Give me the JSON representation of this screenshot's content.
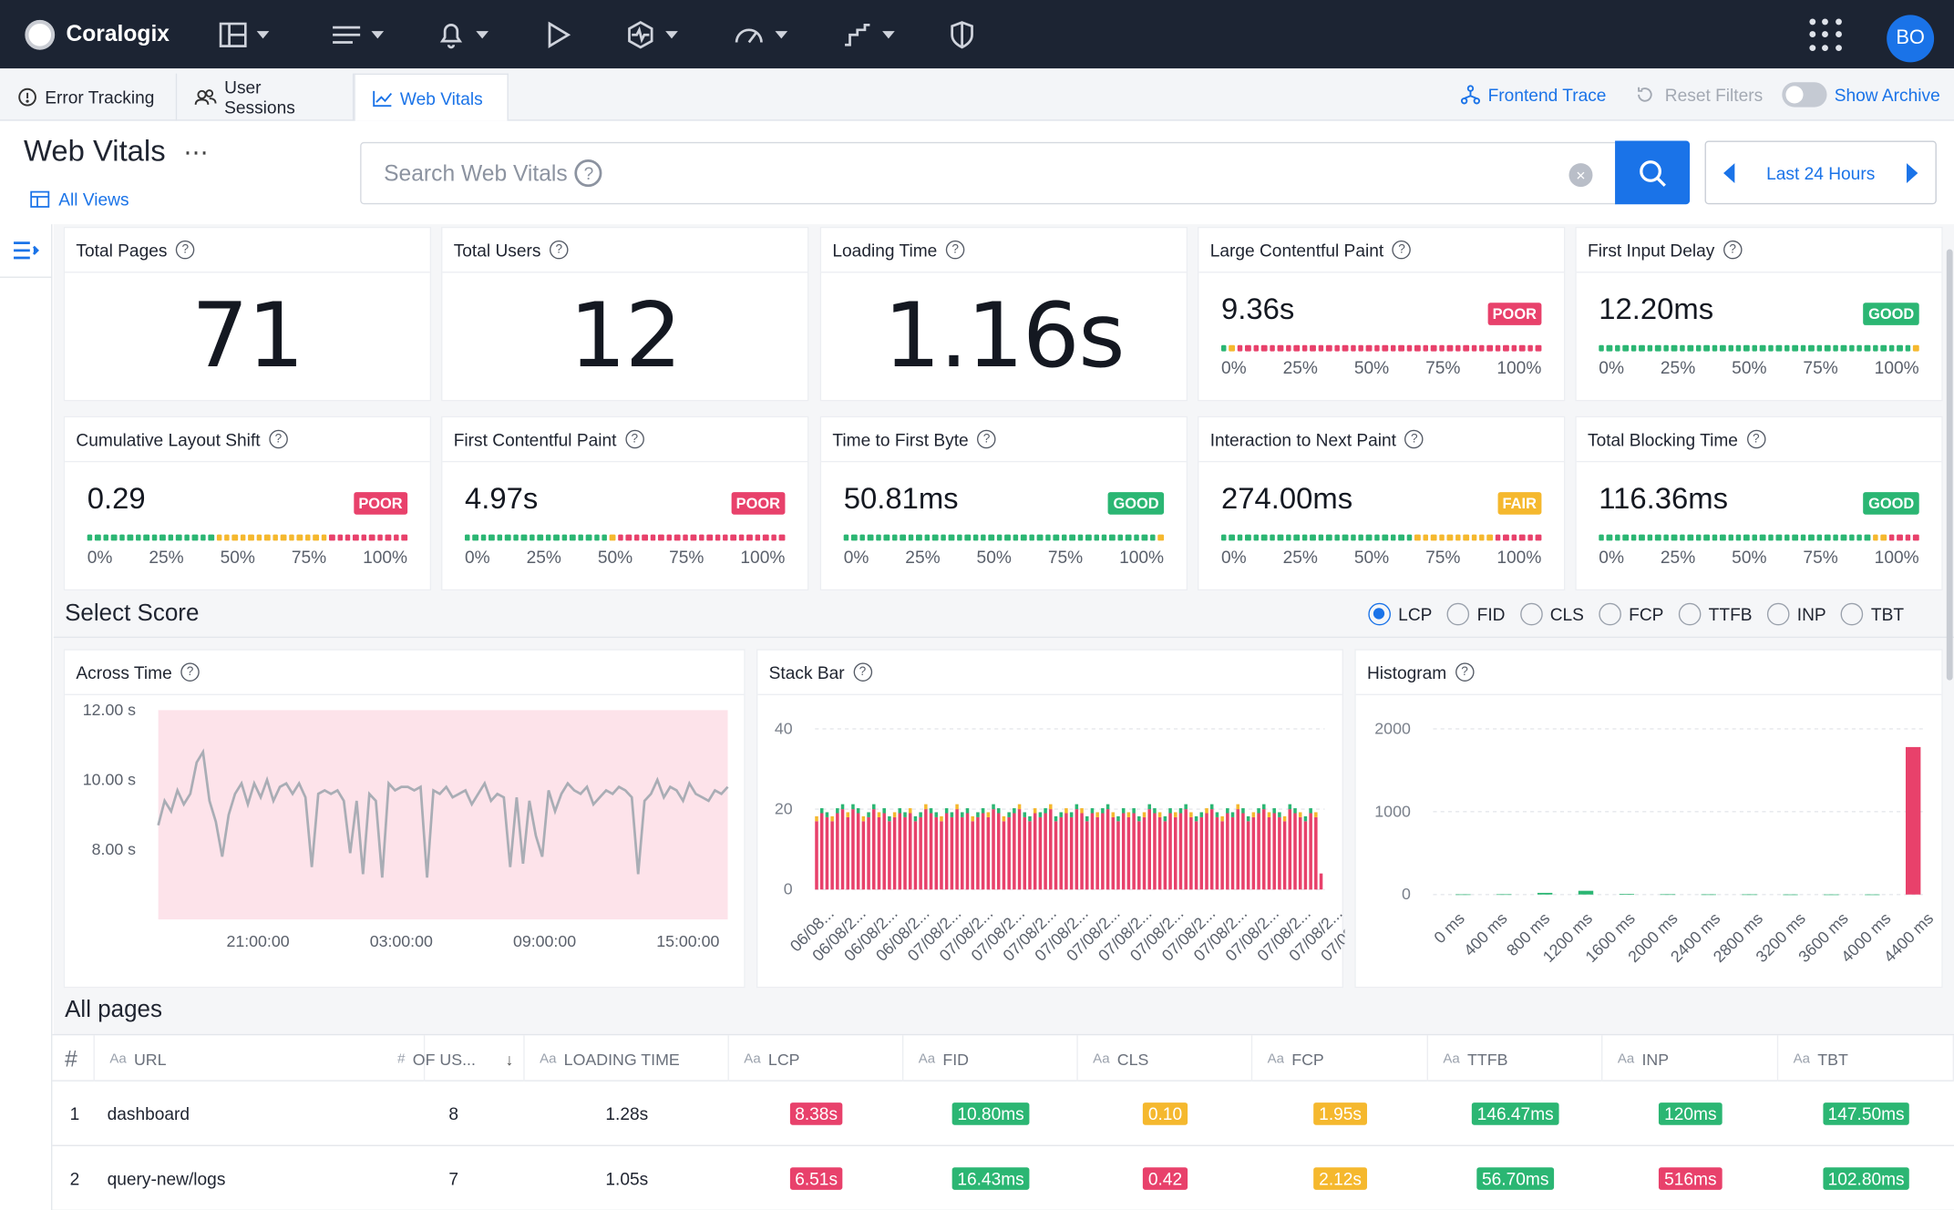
{
  "app": {
    "name": "Coralogix",
    "user_initials": "BO"
  },
  "topnav": [
    "dashboards-icon",
    "logs-icon",
    "alerts-icon",
    "play-icon",
    "integrations-icon",
    "speed-icon",
    "flow-icon",
    "shield-icon"
  ],
  "tabs": [
    {
      "label": "Error Tracking",
      "active": false
    },
    {
      "label": "User Sessions",
      "active": false
    },
    {
      "label": "Web Vitals",
      "active": true
    }
  ],
  "toolbar": {
    "frontend_trace": "Frontend Trace",
    "reset_filters": "Reset Filters",
    "show_archive": "Show Archive"
  },
  "page": {
    "title": "Web Vitals",
    "all_views": "All Views"
  },
  "search": {
    "placeholder": "Search Web Vitals",
    "qmark": "?"
  },
  "timerange": {
    "label": "Last 24 Hours"
  },
  "stats": [
    {
      "label": "Total Pages",
      "value": "71"
    },
    {
      "label": "Total Users",
      "value": "12"
    },
    {
      "label": "Loading Time",
      "value": "1.16s"
    }
  ],
  "metrics": [
    {
      "label": "Large Contentful Paint",
      "value": "9.36s",
      "status": "POOR",
      "color": "#e8416b",
      "bar": [
        "g",
        "y",
        "r",
        "r",
        "r",
        "r",
        "r",
        "r",
        "r",
        "r",
        "r",
        "r",
        "r",
        "r",
        "r",
        "r",
        "r",
        "r",
        "r",
        "r",
        "r",
        "r",
        "r",
        "r",
        "r",
        "r",
        "r",
        "r",
        "r",
        "r",
        "r",
        "r",
        "r",
        "r",
        "r",
        "r",
        "r",
        "r",
        "r",
        "r"
      ]
    },
    {
      "label": "First Input Delay",
      "value": "12.20ms",
      "status": "GOOD",
      "color": "#2bb673",
      "bar": [
        "g",
        "g",
        "g",
        "g",
        "g",
        "g",
        "g",
        "g",
        "g",
        "g",
        "g",
        "g",
        "g",
        "g",
        "g",
        "g",
        "g",
        "g",
        "g",
        "g",
        "g",
        "g",
        "g",
        "g",
        "g",
        "g",
        "g",
        "g",
        "g",
        "g",
        "g",
        "g",
        "g",
        "g",
        "g",
        "g",
        "g",
        "g",
        "g",
        "y"
      ]
    },
    {
      "label": "Cumulative Layout Shift",
      "value": "0.29",
      "status": "POOR",
      "color": "#e8416b",
      "bar": [
        "g",
        "g",
        "g",
        "g",
        "g",
        "g",
        "g",
        "g",
        "g",
        "g",
        "g",
        "g",
        "g",
        "g",
        "g",
        "g",
        "y",
        "y",
        "y",
        "y",
        "y",
        "y",
        "y",
        "y",
        "y",
        "y",
        "y",
        "y",
        "y",
        "y",
        "r",
        "r",
        "r",
        "r",
        "r",
        "r",
        "r",
        "r",
        "r",
        "r"
      ]
    },
    {
      "label": "First Contentful Paint",
      "value": "4.97s",
      "status": "POOR",
      "color": "#e8416b",
      "bar": [
        "g",
        "g",
        "g",
        "g",
        "g",
        "g",
        "g",
        "g",
        "g",
        "g",
        "g",
        "g",
        "g",
        "g",
        "g",
        "g",
        "g",
        "g",
        "y",
        "r",
        "r",
        "r",
        "r",
        "r",
        "r",
        "r",
        "r",
        "r",
        "r",
        "r",
        "r",
        "r",
        "r",
        "r",
        "r",
        "r",
        "r",
        "r",
        "r",
        "r"
      ]
    },
    {
      "label": "Time to First Byte",
      "value": "50.81ms",
      "status": "GOOD",
      "color": "#2bb673",
      "bar": [
        "g",
        "g",
        "g",
        "g",
        "g",
        "g",
        "g",
        "g",
        "g",
        "g",
        "g",
        "g",
        "g",
        "g",
        "g",
        "g",
        "g",
        "g",
        "g",
        "g",
        "g",
        "g",
        "g",
        "g",
        "g",
        "g",
        "g",
        "g",
        "g",
        "g",
        "g",
        "g",
        "g",
        "g",
        "g",
        "g",
        "g",
        "g",
        "g",
        "y"
      ]
    },
    {
      "label": "Interaction to Next Paint",
      "value": "274.00ms",
      "status": "FAIR",
      "color": "#f5b82e",
      "bar": [
        "g",
        "g",
        "g",
        "g",
        "g",
        "g",
        "g",
        "g",
        "g",
        "g",
        "g",
        "g",
        "g",
        "g",
        "g",
        "g",
        "g",
        "g",
        "g",
        "g",
        "g",
        "g",
        "g",
        "g",
        "y",
        "y",
        "y",
        "y",
        "y",
        "y",
        "y",
        "y",
        "y",
        "y",
        "r",
        "r",
        "r",
        "r",
        "r",
        "r"
      ]
    },
    {
      "label": "Total Blocking Time",
      "value": "116.36ms",
      "status": "GOOD",
      "color": "#2bb673",
      "bar": [
        "g",
        "g",
        "g",
        "g",
        "g",
        "g",
        "g",
        "g",
        "g",
        "g",
        "g",
        "g",
        "g",
        "g",
        "g",
        "g",
        "g",
        "g",
        "g",
        "g",
        "g",
        "g",
        "g",
        "g",
        "g",
        "g",
        "g",
        "g",
        "g",
        "g",
        "g",
        "g",
        "g",
        "g",
        "y",
        "y",
        "r",
        "r",
        "r",
        "r"
      ]
    }
  ],
  "metric_ticks": [
    "0%",
    "25%",
    "50%",
    "75%",
    "100%"
  ],
  "select_score": {
    "title": "Select Score",
    "options": [
      "LCP",
      "FID",
      "CLS",
      "FCP",
      "TTFB",
      "INP",
      "TBT"
    ],
    "selected": "LCP"
  },
  "charts_meta": {
    "across_time": "Across Time",
    "stack_bar": "Stack Bar",
    "histogram": "Histogram"
  },
  "chart_data": [
    {
      "type": "area",
      "title": "Across Time",
      "y_ticks": [
        "12.00 s",
        "10.00 s",
        "8.00 s"
      ],
      "x_ticks": [
        "21:00:00",
        "03:00:00",
        "09:00:00",
        "15:00:00"
      ],
      "ylim": [
        6,
        12
      ],
      "band": [
        6,
        12
      ],
      "series": [
        {
          "values": [
            8.7,
            9.4,
            9.1,
            9.7,
            9.3,
            9.6,
            10.5,
            10.8,
            9.4,
            8.8,
            7.8,
            9.0,
            9.6,
            9.9,
            9.3,
            9.9,
            9.5,
            10.0,
            9.4,
            9.8,
            9.9,
            9.6,
            9.9,
            9.5,
            7.5,
            9.6,
            9.7,
            9.6,
            9.7,
            9.4,
            7.9,
            9.4,
            7.3,
            9.6,
            9.4,
            7.2,
            9.9,
            9.7,
            9.8,
            9.8,
            9.7,
            9.8,
            7.2,
            9.7,
            9.6,
            9.8,
            9.5,
            9.6,
            9.7,
            9.3,
            9.6,
            9.9,
            9.4,
            9.6,
            9.5,
            7.5,
            9.5,
            7.6,
            9.4,
            8.4,
            7.8,
            9.7,
            9.1,
            9.6,
            9.9,
            9.7,
            9.6,
            9.8,
            9.3,
            9.5,
            9.7,
            9.6,
            9.8,
            9.7,
            9.5,
            7.3,
            9.4,
            9.6,
            10.0,
            9.5,
            9.8,
            9.7,
            9.4,
            9.9,
            9.6,
            9.5,
            9.4,
            9.7,
            9.6,
            9.8
          ]
        }
      ]
    },
    {
      "type": "bar",
      "title": "Stack Bar",
      "y_ticks": [
        "40",
        "20",
        "0"
      ],
      "ylim": [
        0,
        40
      ],
      "x_ticks": [
        "06/08...",
        "06/08/2...",
        "06/08/2...",
        "06/08/2...",
        "07/08/2...",
        "07/08/2...",
        "07/08/2...",
        "07/08/2...",
        "07/08/2...",
        "07/08/2...",
        "07/08/2...",
        "07/08/2...",
        "07/08/2...",
        "07/08/2...",
        "07/08/2...",
        "07/08/2...",
        "07/08/2...",
        "07/08/2..."
      ],
      "values": [
        17,
        19,
        18,
        17,
        19,
        20,
        18,
        20,
        19,
        17,
        18,
        20,
        18,
        19,
        17,
        18,
        19,
        18,
        19,
        17,
        18,
        20,
        19,
        18,
        17,
        19,
        18,
        20,
        18,
        19,
        17,
        18,
        19,
        18,
        20,
        19,
        17,
        18,
        19,
        20,
        18,
        17,
        19,
        18,
        19,
        20,
        17,
        18,
        19,
        18,
        20,
        19,
        17,
        19,
        18,
        19,
        20,
        18,
        17,
        19,
        18,
        19,
        17,
        18,
        20,
        19,
        18,
        17,
        19,
        18,
        19,
        20,
        18,
        17,
        18,
        19,
        20,
        18,
        17,
        19,
        18,
        20,
        19,
        17,
        18,
        19,
        20,
        18,
        19,
        18,
        17,
        20,
        19,
        18,
        17,
        19,
        18,
        4
      ]
    },
    {
      "type": "bar",
      "title": "Histogram",
      "y_ticks": [
        "2000",
        "1000",
        "0"
      ],
      "ylim": [
        0,
        2000
      ],
      "categories": [
        "0 ms",
        "400 ms",
        "800 ms",
        "1200 ms",
        "1600 ms",
        "2000 ms",
        "2400 ms",
        "2800 ms",
        "3200 ms",
        "3600 ms",
        "4000 ms",
        "4400 ms"
      ],
      "values": [
        2,
        3,
        20,
        45,
        8,
        3,
        2,
        2,
        1,
        1,
        1,
        1780
      ]
    }
  ],
  "all_pages": {
    "title": "All pages",
    "columns": [
      "#",
      "URL",
      "OF US...",
      "LOADING TIME",
      "LCP",
      "FID",
      "CLS",
      "FCP",
      "TTFB",
      "INP",
      "TBT"
    ],
    "col_prefix": "Aa",
    "rows": [
      {
        "n": "1",
        "url": "dashboard",
        "users": "8",
        "loading": "1.28s",
        "lcp": {
          "v": "8.38s",
          "c": "#e8416b"
        },
        "fid": {
          "v": "10.80ms",
          "c": "#2bb673"
        },
        "cls": {
          "v": "0.10",
          "c": "#f5b82e"
        },
        "fcp": {
          "v": "1.95s",
          "c": "#f5b82e"
        },
        "ttfb": {
          "v": "146.47ms",
          "c": "#2bb673"
        },
        "inp": {
          "v": "120ms",
          "c": "#2bb673"
        },
        "tbt": {
          "v": "147.50ms",
          "c": "#2bb673"
        }
      },
      {
        "n": "2",
        "url": "query-new/logs",
        "users": "7",
        "loading": "1.05s",
        "lcp": {
          "v": "6.51s",
          "c": "#e8416b"
        },
        "fid": {
          "v": "16.43ms",
          "c": "#2bb673"
        },
        "cls": {
          "v": "0.42",
          "c": "#e8416b"
        },
        "fcp": {
          "v": "2.12s",
          "c": "#f5b82e"
        },
        "ttfb": {
          "v": "56.70ms",
          "c": "#2bb673"
        },
        "inp": {
          "v": "516ms",
          "c": "#e8416b"
        },
        "tbt": {
          "v": "102.80ms",
          "c": "#2bb673"
        }
      }
    ]
  },
  "colors": {
    "accent": "#1a73e8",
    "topbar": "#1c2433",
    "poor": "#e8416b",
    "good": "#2bb673",
    "fair": "#f5b82e",
    "band": "#fde3ea",
    "line": "#a9adb5"
  }
}
